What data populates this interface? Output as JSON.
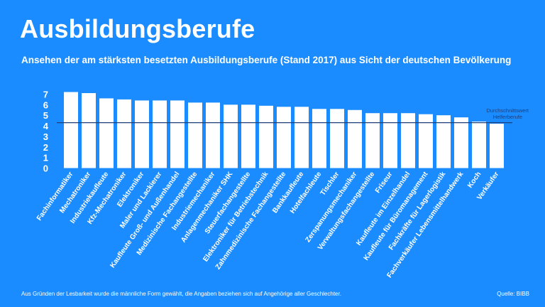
{
  "title": "Ausbildungsberufe",
  "subtitle": "Ansehen der am stärksten besetzten Ausbildungsberufe (Stand 2017) aus Sicht der deutschen Bevölkerung",
  "footnote": "Aus Gründen der Lesbarkeit wurde die männliche Form gewählt, die Angaben beziehen sich auf Angehörige aller Geschlechter.",
  "source": "Quelle: BIBB",
  "colors": {
    "background": "#1a8cff",
    "bar": "#ffffff",
    "reference_line": "#1f3f7a",
    "reference_label": "#1f3f7a"
  },
  "chart_data": {
    "type": "bar",
    "categories": [
      "Fachinformatiker",
      "Mechatroniker",
      "Industriekaufleute",
      "Kfz-Mechatroniker",
      "Elektroniker",
      "Maler und Lackierer",
      "Kaufleute Groß- und Außenhandel",
      "Medizinische Fachangestellte",
      "Industriemechaniker",
      "Anlagenmechaniker SHK",
      "Steuerfachangestellte",
      "Elektroniker für Betriebstechnik",
      "Zahnmedizinische Fachangestellte",
      "Bankkaufleute",
      "Hotelfachleute",
      "Tischler",
      "Zerspanungsmechaniker",
      "Verwaltungsfachangestellte",
      "Friseur",
      "Kaufleute im Einzelhandel",
      "Kaufleute für Büromanagement",
      "Fachkräfte für Lagerlogistik",
      "Fachverkäufer Lebensmittelhandwerk",
      "Koch",
      "Verkäufer"
    ],
    "values": [
      7.2,
      7.1,
      6.6,
      6.5,
      6.4,
      6.4,
      6.4,
      6.2,
      6.2,
      6.0,
      6.0,
      5.9,
      5.8,
      5.8,
      5.6,
      5.6,
      5.5,
      5.2,
      5.2,
      5.2,
      5.1,
      5.0,
      4.8,
      4.4,
      4.2
    ],
    "ylim": [
      0,
      7
    ],
    "yticks": [
      "0",
      "1",
      "2",
      "3",
      "4",
      "5",
      "6",
      "7"
    ],
    "grid": false,
    "reference_line": {
      "value": 4.3,
      "label_line1": "Durchschnittswert",
      "label_line2": "Helferberufe"
    }
  }
}
